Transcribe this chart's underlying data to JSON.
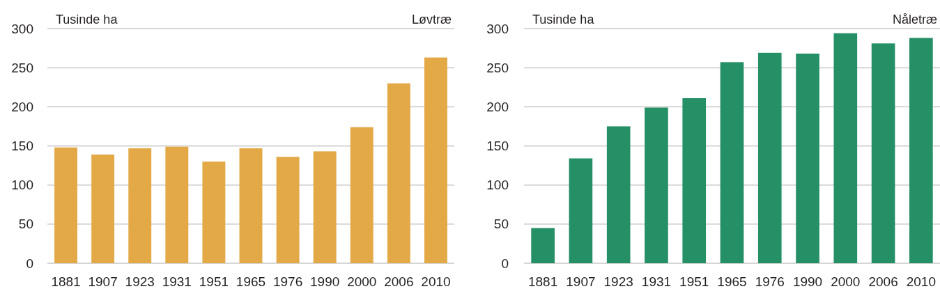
{
  "chart_data": [
    {
      "type": "bar",
      "title": "Løvtræ",
      "ylabel": "Tusinde ha",
      "categories": [
        "1881",
        "1907",
        "1923",
        "1931",
        "1951",
        "1965",
        "1976",
        "1990",
        "2000",
        "2006",
        "2010"
      ],
      "values": [
        148,
        139,
        147,
        149,
        130,
        147,
        136,
        143,
        174,
        230,
        263
      ],
      "color": "#e3a946",
      "ylim": [
        0,
        300
      ],
      "yticks": [
        0,
        50,
        100,
        150,
        200,
        250,
        300
      ],
      "grid": true
    },
    {
      "type": "bar",
      "title": "Nåletræ",
      "ylabel": "Tusinde ha",
      "categories": [
        "1881",
        "1907",
        "1923",
        "1931",
        "1951",
        "1965",
        "1976",
        "1990",
        "2000",
        "2006",
        "2010"
      ],
      "values": [
        45,
        134,
        175,
        199,
        211,
        257,
        269,
        268,
        294,
        281,
        288
      ],
      "color": "#258f66",
      "ylim": [
        0,
        300
      ],
      "yticks": [
        0,
        50,
        100,
        150,
        200,
        250,
        300
      ],
      "grid": true
    }
  ]
}
